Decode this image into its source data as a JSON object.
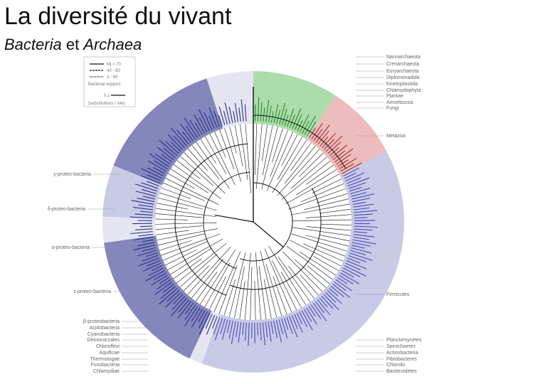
{
  "title": "La diversité du vivant",
  "subtitle": {
    "part1": "Bacteria",
    "part2": " et ",
    "part3": "Archaea"
  },
  "legend": {
    "rows": [
      "Mj > 70",
      "40 - 80",
      "2 - 40"
    ],
    "caption1": "Bacterial support",
    "scale_value": "0.1",
    "caption2": "(substitutions / site)"
  },
  "right_labels": [
    "Nanoarchaeota",
    "Crenarchaeota",
    "Euryarchaeota",
    "Diplomonadida",
    "Kinetoplastida",
    "Chlamydophyta",
    "Plantae",
    "Amoebozoa",
    "Fungi",
    "Metazoa",
    "Firmicutes",
    "Planctomycetes",
    "Spirochaetes",
    "Actinobacteria",
    "Fibrobacteres",
    "Chlorobi",
    "Bacteroidetes"
  ],
  "left_labels": [
    "γ-proteo-bacteria",
    "δ-proteo-bacteria",
    "α-proteo-bacteria",
    "ε-proteo-bacteria",
    "β-proteobacteria",
    "Acidobacteria",
    "Cyanobacteria",
    "Deinococcales",
    "Chloroflexi",
    "Aquificae",
    "Thermotogae",
    "Fusobacteria",
    "Chlamydiae"
  ],
  "colors": {
    "archaea": "#8fd08f",
    "eukarya": "#e8a6a6",
    "bacteria_dark": "#5b5ea6",
    "bacteria_light": "#b7b8dc",
    "bacteria_pale": "#dcdcee"
  }
}
